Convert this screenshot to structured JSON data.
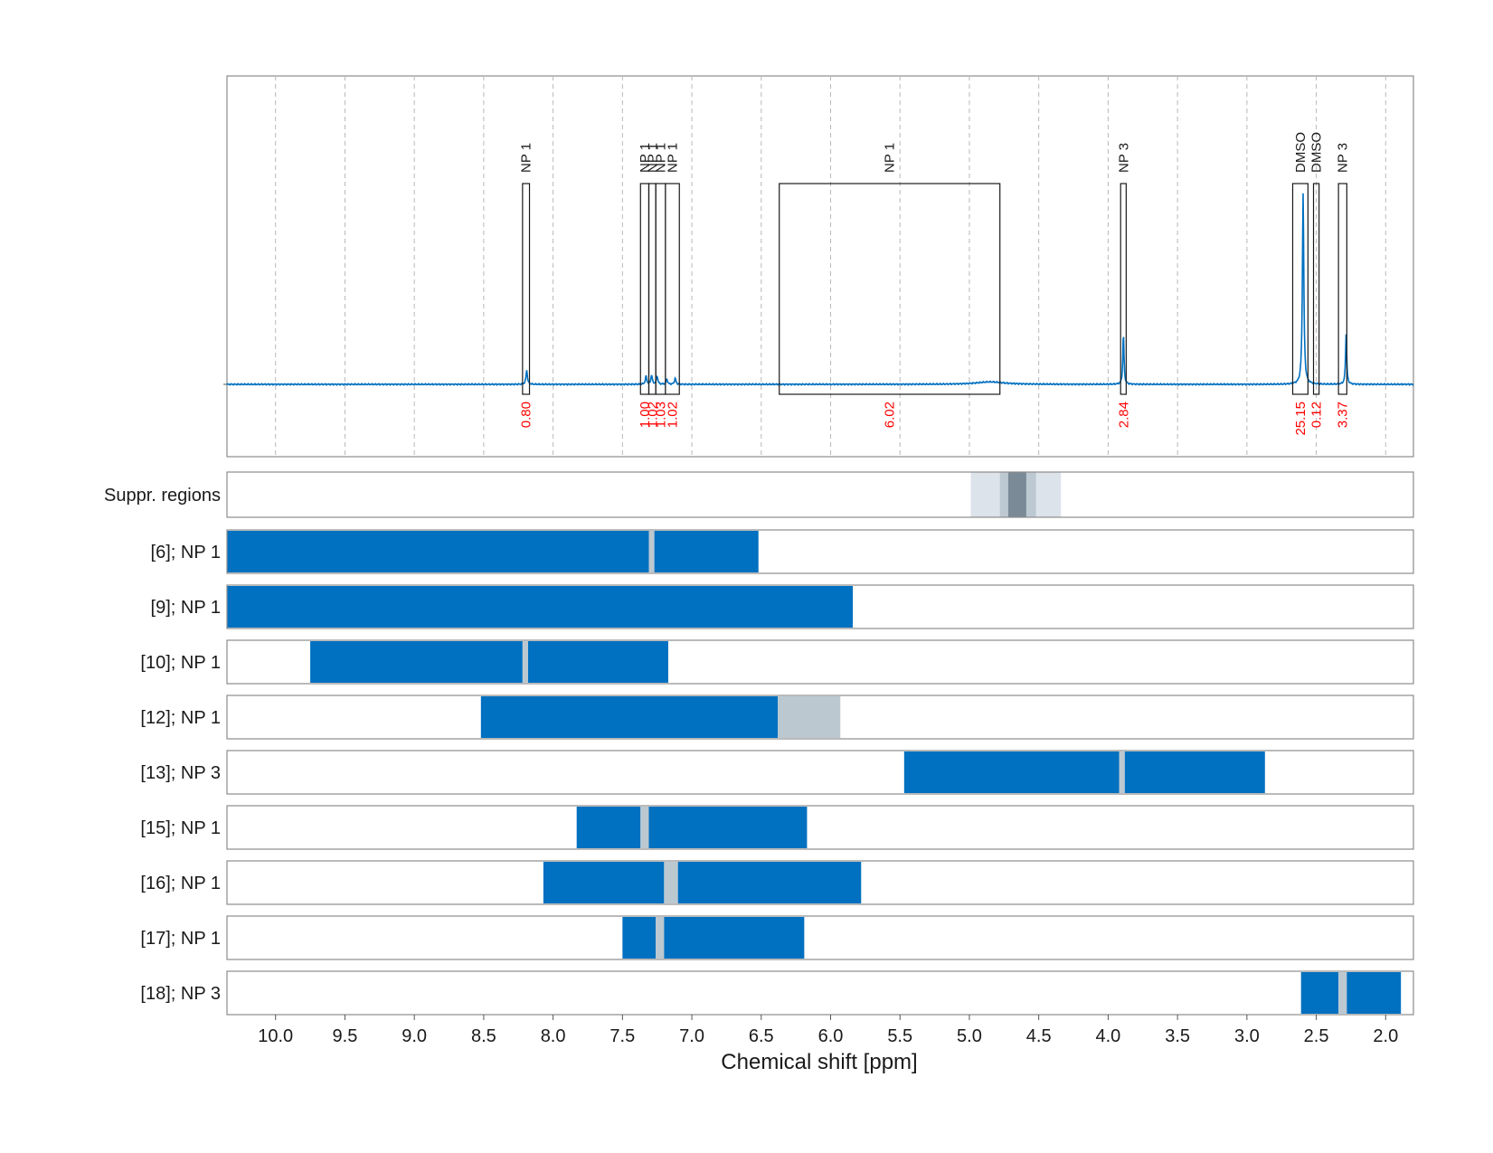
{
  "chart_data": {
    "type": "line",
    "xlabel": "Chemical shift [ppm]",
    "xlim": [
      10.35,
      1.8
    ],
    "x_reversed": true,
    "x_ticks": [
      "10.0",
      "9.5",
      "9.0",
      "8.5",
      "8.0",
      "7.5",
      "7.0",
      "6.5",
      "6.0",
      "5.5",
      "5.0",
      "4.5",
      "4.0",
      "3.5",
      "3.0",
      "2.5",
      "2.0"
    ],
    "x_tick_values": [
      10.0,
      9.5,
      9.0,
      8.5,
      8.0,
      7.5,
      7.0,
      6.5,
      6.0,
      5.5,
      5.0,
      4.5,
      4.0,
      3.5,
      3.0,
      2.5,
      2.0
    ],
    "grid": true,
    "spectrum": {
      "baseline": 0,
      "ylim": [
        -0.3,
        1.0
      ],
      "line_color": "#0070c0",
      "peaks": [
        {
          "ppm": 8.19,
          "height": 0.07,
          "width": 0.006
        },
        {
          "ppm": 7.33,
          "height": 0.04,
          "width": 0.006
        },
        {
          "ppm": 7.29,
          "height": 0.045,
          "width": 0.006
        },
        {
          "ppm": 7.25,
          "height": 0.04,
          "width": 0.006
        },
        {
          "ppm": 7.18,
          "height": 0.025,
          "width": 0.006
        },
        {
          "ppm": 7.12,
          "height": 0.03,
          "width": 0.006
        },
        {
          "ppm": 4.85,
          "height": 0.012,
          "width": 0.12
        },
        {
          "ppm": 3.89,
          "height": 0.25,
          "width": 0.005
        },
        {
          "ppm": 2.595,
          "height": 0.94,
          "width": 0.006
        },
        {
          "ppm": 2.285,
          "height": 0.25,
          "width": 0.005
        }
      ]
    },
    "regions": [
      {
        "label": "NP 1",
        "from": 8.22,
        "to": 8.17,
        "integral": "0.80"
      },
      {
        "label": "NP 1",
        "from": 7.37,
        "to": 7.31,
        "integral": "1.00"
      },
      {
        "label": "NP 1",
        "from": 7.31,
        "to": 7.26,
        "integral": "1.02"
      },
      {
        "label": "NP 1",
        "from": 7.26,
        "to": 7.19,
        "integral": "1.03"
      },
      {
        "label": "NP 1",
        "from": 7.19,
        "to": 7.09,
        "integral": "1.02"
      },
      {
        "label": "NP 1",
        "from": 6.37,
        "to": 4.78,
        "integral": "6.02"
      },
      {
        "label": "NP 3",
        "from": 3.91,
        "to": 3.87,
        "integral": "2.84"
      },
      {
        "label": "DMSO",
        "from": 2.67,
        "to": 2.56,
        "integral": "25.15"
      },
      {
        "label": "DMSO",
        "from": 2.52,
        "to": 2.48,
        "integral": "0.12"
      },
      {
        "label": "NP 3",
        "from": 2.34,
        "to": 2.28,
        "integral": "3.37"
      }
    ],
    "suppression": {
      "label": "Suppr. regions",
      "bands": [
        {
          "from": 4.99,
          "to": 4.34,
          "color": "#dce3ea"
        },
        {
          "from": 4.78,
          "to": 4.52,
          "color": "#bdc9d2"
        },
        {
          "from": 4.72,
          "to": 4.59,
          "color": "#7a8a96"
        }
      ]
    },
    "rows": [
      {
        "label": "[6]; NP 1",
        "bars": [
          {
            "from": 10.35,
            "to": 7.31,
            "color": "#0070c0"
          },
          {
            "from": 7.31,
            "to": 7.27,
            "color": "#bcc8d0"
          },
          {
            "from": 7.27,
            "to": 6.52,
            "color": "#0070c0"
          }
        ]
      },
      {
        "label": "[9]; NP 1",
        "bars": [
          {
            "from": 10.35,
            "to": 5.84,
            "color": "#0070c0"
          }
        ]
      },
      {
        "label": "[10]; NP 1",
        "bars": [
          {
            "from": 9.75,
            "to": 8.22,
            "color": "#0070c0"
          },
          {
            "from": 8.22,
            "to": 8.18,
            "color": "#bcc8d0"
          },
          {
            "from": 8.18,
            "to": 7.17,
            "color": "#0070c0"
          }
        ]
      },
      {
        "label": "[12]; NP 1",
        "bars": [
          {
            "from": 8.52,
            "to": 6.38,
            "color": "#0070c0"
          },
          {
            "from": 6.38,
            "to": 5.93,
            "color": "#bcc8d0"
          }
        ]
      },
      {
        "label": "[13]; NP 3",
        "bars": [
          {
            "from": 5.47,
            "to": 3.92,
            "color": "#0070c0"
          },
          {
            "from": 3.92,
            "to": 3.88,
            "color": "#bcc8d0"
          },
          {
            "from": 3.88,
            "to": 2.87,
            "color": "#0070c0"
          }
        ]
      },
      {
        "label": "[15]; NP 1",
        "bars": [
          {
            "from": 7.83,
            "to": 7.37,
            "color": "#0070c0"
          },
          {
            "from": 7.37,
            "to": 7.31,
            "color": "#bcc8d0"
          },
          {
            "from": 7.31,
            "to": 6.17,
            "color": "#0070c0"
          }
        ]
      },
      {
        "label": "[16]; NP 1",
        "bars": [
          {
            "from": 8.07,
            "to": 7.2,
            "color": "#0070c0"
          },
          {
            "from": 7.2,
            "to": 7.1,
            "color": "#bcc8d0"
          },
          {
            "from": 7.1,
            "to": 5.78,
            "color": "#0070c0"
          }
        ]
      },
      {
        "label": "[17]; NP 1",
        "bars": [
          {
            "from": 7.5,
            "to": 7.26,
            "color": "#0070c0"
          },
          {
            "from": 7.26,
            "to": 7.2,
            "color": "#bcc8d0"
          },
          {
            "from": 7.2,
            "to": 6.19,
            "color": "#0070c0"
          }
        ]
      },
      {
        "label": "[18]; NP 3",
        "bars": [
          {
            "from": 2.61,
            "to": 2.34,
            "color": "#0070c0"
          },
          {
            "from": 2.34,
            "to": 2.28,
            "color": "#bcc8d0"
          },
          {
            "from": 2.28,
            "to": 1.89,
            "color": "#0070c0"
          }
        ]
      }
    ]
  }
}
